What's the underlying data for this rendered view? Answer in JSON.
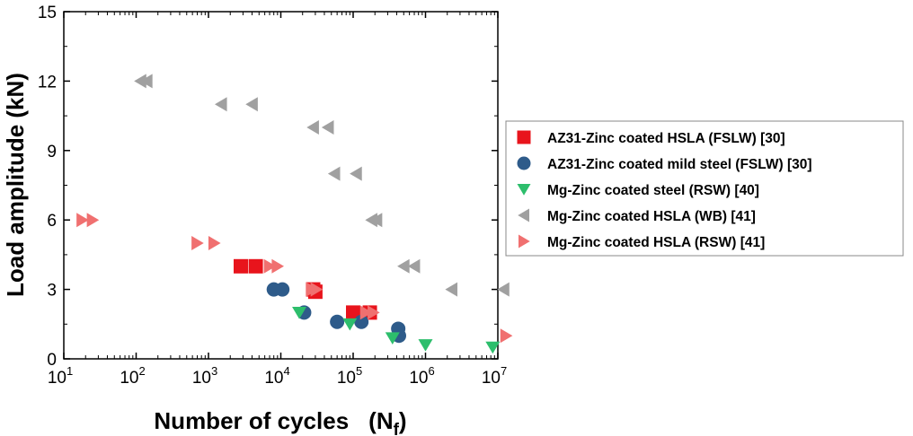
{
  "chart_data": {
    "type": "scatter",
    "xlabel": "Number of cycles",
    "xlabel_subscript_symbol": "N",
    "xlabel_subscript": "f",
    "ylabel": "Load amplitude (kN)",
    "xscale": "log",
    "xlim": [
      10,
      10000000
    ],
    "ylim": [
      0,
      15
    ],
    "x_ticks": [
      {
        "base": "10",
        "exp": "1"
      },
      {
        "base": "10",
        "exp": "2"
      },
      {
        "base": "10",
        "exp": "3"
      },
      {
        "base": "10",
        "exp": "4"
      },
      {
        "base": "10",
        "exp": "5"
      },
      {
        "base": "10",
        "exp": "6"
      },
      {
        "base": "10",
        "exp": "7"
      }
    ],
    "y_ticks": [
      "0",
      "3",
      "6",
      "9",
      "12",
      "15"
    ],
    "legend_position": "right",
    "series": [
      {
        "name": "AZ31-Zinc coated HSLA (FSLW) [30]",
        "marker": "square",
        "color": "#e8141c",
        "points": [
          [
            2800,
            4
          ],
          [
            4500,
            4
          ],
          [
            28000,
            3
          ],
          [
            30000,
            2.9
          ],
          [
            100000,
            2
          ],
          [
            170000,
            2
          ]
        ]
      },
      {
        "name": "AZ31-Zinc coated mild steel (FSLW) [30]",
        "marker": "circle",
        "color": "#2e5b8a",
        "points": [
          [
            8000,
            3
          ],
          [
            10500,
            3
          ],
          [
            21000,
            2
          ],
          [
            60000,
            1.6
          ],
          [
            130000,
            1.6
          ],
          [
            420000,
            1.3
          ],
          [
            430000,
            1.0
          ]
        ]
      },
      {
        "name": "Mg-Zinc coated steel (RSW) [40]",
        "marker": "triangle-down",
        "color": "#2dbe6c",
        "points": [
          [
            18000,
            2
          ],
          [
            90000,
            1.5
          ],
          [
            350000,
            0.9
          ],
          [
            1000000,
            0.6
          ],
          [
            8500000,
            0.5
          ]
        ]
      },
      {
        "name": "Mg-Zinc coated HSLA (WB) [41]",
        "marker": "triangle-left",
        "color": "#a0a0a0",
        "points": [
          [
            115,
            12
          ],
          [
            140,
            12
          ],
          [
            1500,
            11
          ],
          [
            4000,
            11
          ],
          [
            28000,
            10
          ],
          [
            45000,
            10
          ],
          [
            55000,
            8
          ],
          [
            110000,
            8
          ],
          [
            180000,
            6
          ],
          [
            210000,
            6
          ],
          [
            500000,
            4
          ],
          [
            700000,
            4
          ],
          [
            2300000,
            3
          ],
          [
            12000000,
            3
          ]
        ]
      },
      {
        "name": "Mg-Zinc coated HSLA (RSW) [41]",
        "marker": "triangle-right",
        "color": "#f07070",
        "points": [
          [
            18,
            6
          ],
          [
            25,
            6
          ],
          [
            700,
            5
          ],
          [
            1200,
            5
          ],
          [
            7000,
            4
          ],
          [
            9000,
            4
          ],
          [
            27000,
            3
          ],
          [
            31000,
            3
          ],
          [
            150000,
            2
          ],
          [
            190000,
            2
          ],
          [
            13000000,
            1
          ]
        ]
      }
    ]
  }
}
